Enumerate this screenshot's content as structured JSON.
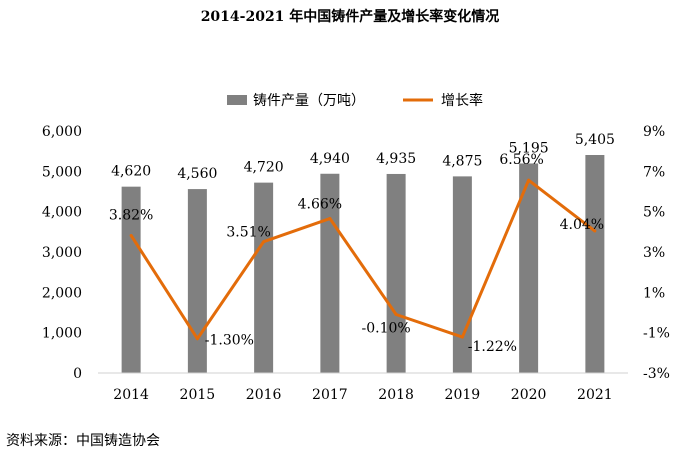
{
  "chart_data": {
    "type": "bar",
    "title": "2014-2021 年中国铸件产量及增长率变化情况",
    "categories": [
      "2014",
      "2015",
      "2016",
      "2017",
      "2018",
      "2019",
      "2020",
      "2021"
    ],
    "series": [
      {
        "name": "铸件产量（万吨）",
        "type": "bar",
        "axis": "left",
        "values": [
          4620,
          4560,
          4720,
          4940,
          4935,
          4875,
          5195,
          5405
        ],
        "labels": [
          "4,620",
          "4,560",
          "4,720",
          "4,940",
          "4,935",
          "4,875",
          "5,195",
          "5,405"
        ],
        "color": "#808080"
      },
      {
        "name": "增长率",
        "type": "line",
        "axis": "right",
        "values": [
          3.82,
          -1.3,
          3.51,
          4.66,
          -0.1,
          -1.22,
          6.56,
          4.04
        ],
        "labels": [
          "3.82%",
          "-1.30%",
          "3.51%",
          "4.66%",
          "-0.10%",
          "-1.22%",
          "6.56%",
          "4.04%"
        ],
        "color": "#E36C0A"
      }
    ],
    "y_left": {
      "ylim": [
        0,
        6000
      ],
      "ticks": [
        0,
        1000,
        2000,
        3000,
        4000,
        5000,
        6000
      ],
      "tick_labels": [
        "0",
        "1,000",
        "2,000",
        "3,000",
        "4,000",
        "5,000",
        "6,000"
      ]
    },
    "y_right": {
      "ylim": [
        -3,
        9
      ],
      "ticks": [
        -3,
        -1,
        1,
        3,
        5,
        7,
        9
      ],
      "tick_labels": [
        "-3%",
        "-1%",
        "1%",
        "3%",
        "5%",
        "7%",
        "9%"
      ]
    },
    "grid": false,
    "legend_position": "top-center"
  },
  "source_note": "资料来源：中国铸造协会"
}
